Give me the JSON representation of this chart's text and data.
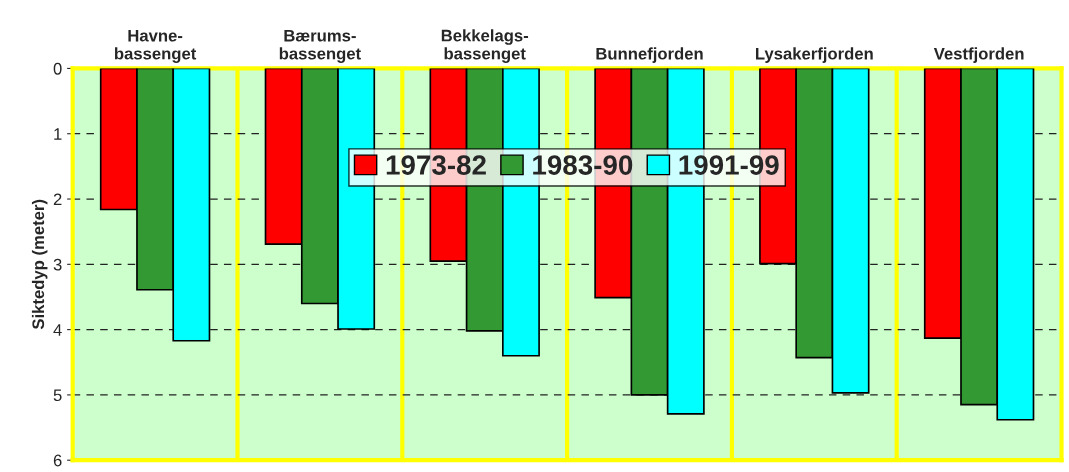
{
  "chart_data": {
    "type": "bar",
    "ylabel": "Siktedyp (meter)",
    "categories": [
      "Havne-\nbassenget",
      "Bærums-\nbassenget",
      "Bekkelags-\nbassenget",
      "Bunnefjorden",
      "Lysakerfjorden",
      "Vestfjorden"
    ],
    "series": [
      {
        "name": "1973-82",
        "color": "#ff0000",
        "values": [
          2.16,
          2.69,
          2.95,
          3.51,
          2.99,
          4.13
        ]
      },
      {
        "name": "1983-90",
        "color": "#339933",
        "values": [
          3.39,
          3.6,
          4.02,
          5.0,
          4.43,
          5.15
        ]
      },
      {
        "name": "1991-99",
        "color": "#00ffff",
        "values": [
          4.17,
          3.99,
          4.4,
          5.29,
          4.97,
          5.38
        ]
      }
    ],
    "ylim": [
      6,
      0
    ],
    "yticks": [
      0,
      1,
      2,
      3,
      4,
      5,
      6
    ],
    "grid": "y",
    "legend": "top"
  }
}
